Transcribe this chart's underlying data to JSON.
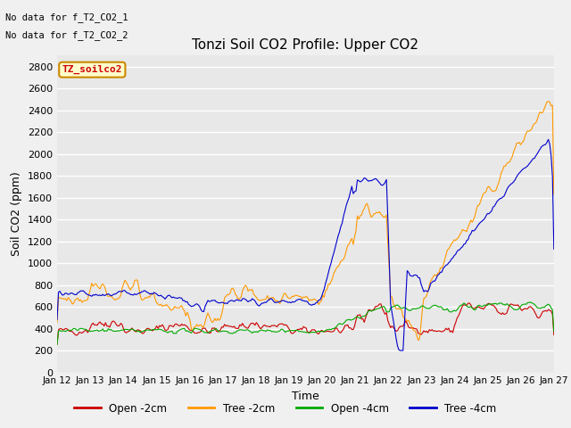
{
  "title": "Tonzi Soil CO2 Profile: Upper CO2",
  "xlabel": "Time",
  "ylabel": "Soil CO2 (ppm)",
  "no_data_text": [
    "No data for f_T2_CO2_1",
    "No data for f_T2_CO2_2"
  ],
  "legend_label": "TZ_soilco2",
  "ylim": [
    0,
    2900
  ],
  "yticks": [
    0,
    200,
    400,
    600,
    800,
    1000,
    1200,
    1400,
    1600,
    1800,
    2000,
    2200,
    2400,
    2600,
    2800
  ],
  "colors": {
    "open_2cm": "#cc0000",
    "tree_2cm": "#ff9900",
    "open_4cm": "#00aa00",
    "tree_4cm": "#0000cc"
  },
  "series_labels": [
    "Open -2cm",
    "Tree -2cm",
    "Open -4cm",
    "Tree -4cm"
  ],
  "plot_bg_color": "#e8e8e8",
  "grid_color": "#ffffff"
}
